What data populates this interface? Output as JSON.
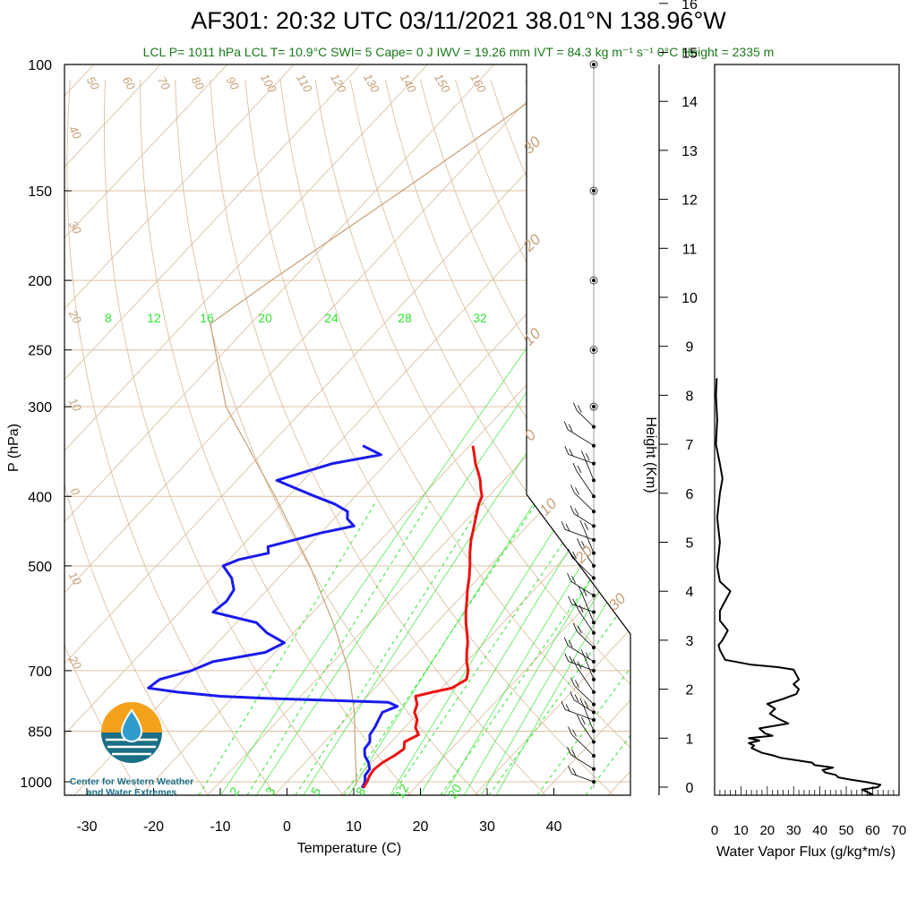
{
  "header": {
    "title": "AF301: 20:32 UTC 03/11/2021  38.01°N 138.96°W",
    "stats": "LCL P= 1011 hPa  LCL T= 10.9°C  SWI= 5  Cape= 0 J  IWV = 19.26 mm  IVT = 84.3 kg m⁻¹ s⁻¹  0°C Height = 2335 m"
  },
  "logo": {
    "line1": "Center for Western Weather",
    "line2": "and Water Extremes",
    "colors": {
      "sun": "#f4a21c",
      "water": "#1b6f86",
      "drop": "#2f9ccc"
    }
  },
  "chart_data": [
    {
      "type": "line",
      "subtype": "skew-T log-P sounding",
      "xlabel": "Temperature (C)",
      "ylabel": "P (hPa)",
      "xlim": [
        -33,
        52
      ],
      "ylim": [
        1020,
        100
      ],
      "yscale": "log",
      "x_ticks": [
        -30,
        -20,
        -10,
        0,
        10,
        20,
        30,
        40
      ],
      "y_ticks": [
        1000,
        850,
        700,
        500,
        400,
        300,
        250,
        200,
        150,
        100
      ],
      "colors": {
        "temperature": "#ee1111",
        "dewpoint": "#1a1aee",
        "parcel": "#c8a078",
        "mixing": "#2ee62e",
        "isotherm": "#dcc0a0",
        "wind": "#000000"
      },
      "temperature": {
        "p": [
          1020,
          1000,
          980,
          960,
          940,
          920,
          900,
          880,
          860,
          840,
          820,
          800,
          780,
          760,
          750,
          740,
          720,
          700,
          680,
          660,
          640,
          620,
          600,
          580,
          560,
          540,
          520,
          500,
          480,
          460,
          440,
          420,
          410,
          400,
          390,
          380,
          370,
          360,
          350,
          340
        ],
        "t": [
          12.3,
          12.0,
          11.5,
          11.3,
          11.6,
          12.4,
          12.9,
          12.0,
          13.1,
          11.6,
          10.8,
          9.3,
          8.6,
          7.2,
          9.2,
          11.5,
          12.5,
          11.5,
          10.0,
          8.7,
          7.5,
          6.0,
          4.4,
          2.9,
          1.5,
          0.0,
          -1.4,
          -3.0,
          -4.8,
          -6.5,
          -8.0,
          -9.6,
          -10.4,
          -11.0,
          -12.3,
          -13.5,
          -15.0,
          -16.6,
          -18.0,
          -19.5
        ]
      },
      "dewpoint": {
        "p": [
          1020,
          1000,
          980,
          960,
          940,
          920,
          900,
          880,
          860,
          840,
          820,
          800,
          785,
          775,
          770,
          765,
          760,
          750,
          740,
          720,
          700,
          680,
          660,
          640,
          620,
          600,
          580,
          560,
          540,
          520,
          500,
          490,
          480,
          470,
          460,
          450,
          440,
          430,
          420,
          410,
          400,
          390,
          380,
          370,
          360,
          350,
          340
        ],
        "t": [
          12.1,
          11.7,
          10.8,
          10.6,
          9.5,
          8.0,
          7.0,
          6.8,
          5.8,
          5.5,
          5.0,
          4.5,
          5.9,
          4.0,
          -5.0,
          -15.0,
          -22.0,
          -29.0,
          -34.0,
          -33.5,
          -30.0,
          -28.0,
          -21.5,
          -20.0,
          -24.0,
          -27.0,
          -35.0,
          -34.5,
          -35.0,
          -37.0,
          -40.0,
          -38.5,
          -35.0,
          -36.0,
          -33.0,
          -30.0,
          -26.0,
          -28.0,
          -29.0,
          -32.0,
          -36.0,
          -40.0,
          -44.0,
          -41.0,
          -38.0,
          -32.0,
          -36.0
        ]
      },
      "parcel": {
        "p": [
          1011,
          900,
          800,
          700,
          600,
          500,
          400,
          300,
          230,
          200,
          150,
          110
        ],
        "t": [
          10.9,
          5.6,
          0.3,
          -6.4,
          -15.5,
          -27.0,
          -42.0,
          -62.0,
          -76.0,
          -73.0,
          -66.0,
          -59.0
        ]
      },
      "mixing_ratio_lines": [
        2,
        3,
        5,
        8,
        12,
        16,
        20,
        24,
        28,
        32
      ],
      "mixing_ratio_labels_bottom": [
        "2",
        "3",
        "5",
        "8",
        "12",
        "20"
      ],
      "mixing_ratio_labels_top": [
        "8",
        "12",
        "16",
        "20",
        "24",
        "28",
        "32"
      ],
      "isotherm_labels": [
        "50",
        "60",
        "70",
        "80",
        "90",
        "100",
        "110",
        "120",
        "130",
        "140",
        "150",
        "160"
      ],
      "skew_labels_left": [
        "40",
        "30",
        "20",
        "10",
        "0",
        "10",
        "20"
      ],
      "skew_labels_right": [
        "30",
        "20",
        "10",
        "0",
        "10",
        "20",
        "30"
      ],
      "wind_levels_hpa": [
        1000,
        960,
        920,
        880,
        850,
        820,
        800,
        780,
        750,
        720,
        700,
        680,
        650,
        620,
        600,
        580,
        550,
        520,
        500,
        480,
        460,
        440,
        420,
        400,
        380,
        360,
        340,
        320,
        300,
        250,
        200,
        150,
        100
      ]
    },
    {
      "type": "line",
      "xlabel": "Water Vapor Flux (g/kg*m/s)",
      "ylabel": "Height (Km)",
      "xlim": [
        0,
        70
      ],
      "ylim": [
        -0.25,
        16.4
      ],
      "x_ticks": [
        0,
        10,
        20,
        30,
        40,
        50,
        60,
        70
      ],
      "y_ticks": [
        0,
        1,
        2,
        3,
        4,
        5,
        6,
        7,
        8,
        9,
        10,
        11,
        12,
        13,
        14,
        15,
        16
      ],
      "series": [
        {
          "height_km": [
            -0.2,
            -0.15,
            -0.05,
            0.0,
            0.05,
            0.1,
            0.15,
            0.2,
            0.25,
            0.3,
            0.35,
            0.4,
            0.45,
            0.5,
            0.55,
            0.6,
            0.65,
            0.7,
            0.75,
            0.8,
            0.85,
            0.9,
            0.95,
            1.0,
            1.05,
            1.1,
            1.2,
            1.3,
            1.4,
            1.5,
            1.6,
            1.7,
            1.8,
            1.9,
            2.0,
            2.1,
            2.2,
            2.3,
            2.4,
            2.45,
            2.5,
            2.6,
            2.7,
            2.8,
            2.9,
            3.0,
            3.2,
            3.4,
            3.6,
            3.8,
            4.0,
            4.2,
            4.5,
            5.0,
            5.5,
            6.0,
            6.3,
            6.6,
            7.0,
            7.5,
            8.0,
            8.35
          ],
          "flux": [
            54,
            60,
            56,
            62,
            63,
            58,
            52,
            47,
            46,
            42,
            41,
            45,
            38,
            37,
            31,
            25,
            22,
            18,
            16,
            14,
            15,
            13,
            17,
            13,
            22,
            19,
            17,
            28,
            24,
            21,
            23,
            20,
            26,
            31,
            32,
            30,
            32,
            31,
            30,
            24,
            14,
            4,
            3,
            2,
            1.5,
            3,
            5,
            2,
            2,
            4,
            6,
            2,
            1,
            2,
            1,
            2,
            3,
            2,
            0.5,
            1,
            0.5,
            0.8
          ]
        }
      ]
    }
  ]
}
